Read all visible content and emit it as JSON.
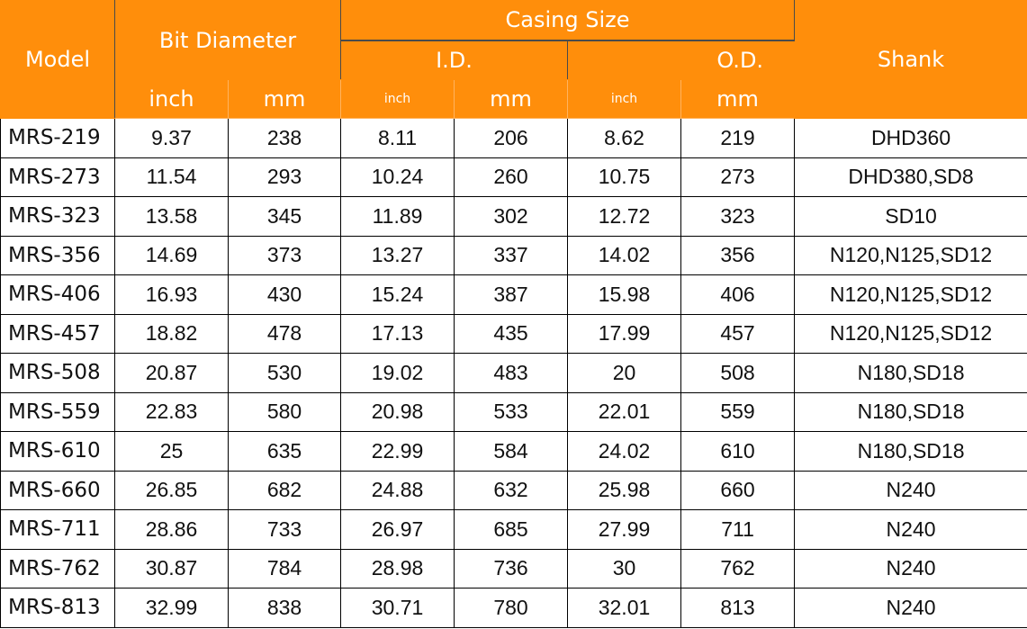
{
  "header": {
    "model": "Model",
    "bit_diameter": "Bit Diameter",
    "casing_size": "Casing Size",
    "id": "I.D.",
    "od": "O.D.",
    "shank": "Shank",
    "units": {
      "bit_inch": "inch",
      "bit_mm": "mm",
      "id_inch": "inch",
      "id_mm": "mm",
      "od_inch": "inch",
      "od_mm": "mm"
    }
  },
  "rows": [
    {
      "model": "MRS-219",
      "bit_inch": "9.37",
      "bit_mm": "238",
      "id_inch": "8.11",
      "id_mm": "206",
      "od_inch": "8.62",
      "od_mm": "219",
      "shank": "DHD360"
    },
    {
      "model": "MRS-273",
      "bit_inch": "11.54",
      "bit_mm": "293",
      "id_inch": "10.24",
      "id_mm": "260",
      "od_inch": "10.75",
      "od_mm": "273",
      "shank": "DHD380,SD8"
    },
    {
      "model": "MRS-323",
      "bit_inch": "13.58",
      "bit_mm": "345",
      "id_inch": "11.89",
      "id_mm": "302",
      "od_inch": "12.72",
      "od_mm": "323",
      "shank": "SD10"
    },
    {
      "model": "MRS-356",
      "bit_inch": "14.69",
      "bit_mm": "373",
      "id_inch": "13.27",
      "id_mm": "337",
      "od_inch": "14.02",
      "od_mm": "356",
      "shank": "N120,N125,SD12"
    },
    {
      "model": "MRS-406",
      "bit_inch": "16.93",
      "bit_mm": "430",
      "id_inch": "15.24",
      "id_mm": "387",
      "od_inch": "15.98",
      "od_mm": "406",
      "shank": "N120,N125,SD12"
    },
    {
      "model": "MRS-457",
      "bit_inch": "18.82",
      "bit_mm": "478",
      "id_inch": "17.13",
      "id_mm": "435",
      "od_inch": "17.99",
      "od_mm": "457",
      "shank": "N120,N125,SD12"
    },
    {
      "model": "MRS-508",
      "bit_inch": "20.87",
      "bit_mm": "530",
      "id_inch": "19.02",
      "id_mm": "483",
      "od_inch": "20",
      "od_mm": "508",
      "shank": "N180,SD18"
    },
    {
      "model": "MRS-559",
      "bit_inch": "22.83",
      "bit_mm": "580",
      "id_inch": "20.98",
      "id_mm": "533",
      "od_inch": "22.01",
      "od_mm": "559",
      "shank": "N180,SD18"
    },
    {
      "model": "MRS-610",
      "bit_inch": "25",
      "bit_mm": "635",
      "id_inch": "22.99",
      "id_mm": "584",
      "od_inch": "24.02",
      "od_mm": "610",
      "shank": "N180,SD18"
    },
    {
      "model": "MRS-660",
      "bit_inch": "26.85",
      "bit_mm": "682",
      "id_inch": "24.88",
      "id_mm": "632",
      "od_inch": "25.98",
      "od_mm": "660",
      "shank": "N240"
    },
    {
      "model": "MRS-711",
      "bit_inch": "28.86",
      "bit_mm": "733",
      "id_inch": "26.97",
      "id_mm": "685",
      "od_inch": "27.99",
      "od_mm": "711",
      "shank": "N240"
    },
    {
      "model": "MRS-762",
      "bit_inch": "30.87",
      "bit_mm": "784",
      "id_inch": "28.98",
      "id_mm": "736",
      "od_inch": "30",
      "od_mm": "762",
      "shank": "N240"
    },
    {
      "model": "MRS-813",
      "bit_inch": "32.99",
      "bit_mm": "838",
      "id_inch": "30.71",
      "id_mm": "780",
      "od_inch": "32.01",
      "od_mm": "813",
      "shank": "N240"
    }
  ],
  "colors": {
    "header_bg": "#ff8e0b",
    "header_text": "#ffffff",
    "grid": "#000000"
  }
}
